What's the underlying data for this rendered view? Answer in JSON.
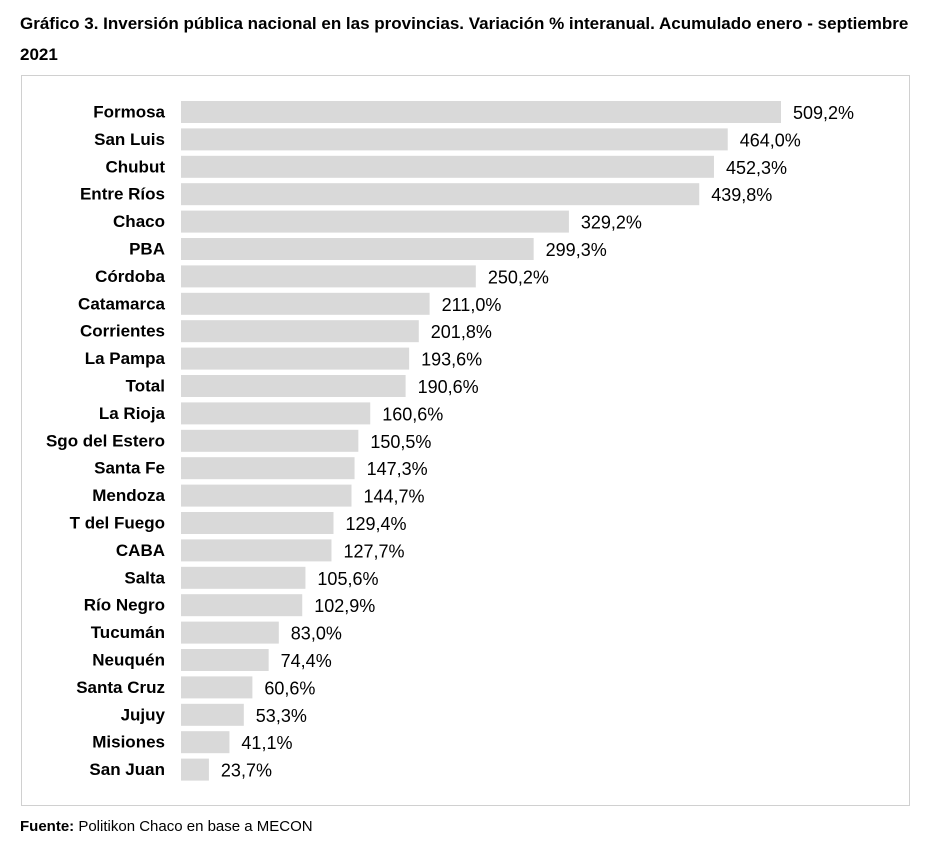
{
  "title": "Gráfico 3. Inversión pública nacional en las provincias. Variación % interanual. Acumulado enero - septiembre 2021",
  "source": {
    "label": "Fuente:",
    "text": " Politikon Chaco en base a MECON"
  },
  "chart_data": {
    "type": "bar",
    "orientation": "horizontal",
    "title": "Gráfico 3. Inversión pública nacional en las provincias. Variación % interanual. Acumulado enero - septiembre 2021",
    "xlabel": "",
    "ylabel": "",
    "xlim": [
      0,
      509.2
    ],
    "grid": false,
    "legend": "none",
    "bar_color": "#d9d9d9",
    "categories": [
      "Formosa",
      "San Luis",
      "Chubut",
      "Entre Ríos",
      "Chaco",
      "PBA",
      "Córdoba",
      "Catamarca",
      "Corrientes",
      "La Pampa",
      "Total",
      "La Rioja",
      "Sgo del Estero",
      "Santa Fe",
      "Mendoza",
      "T del Fuego",
      "CABA",
      "Salta",
      "Río Negro",
      "Tucumán",
      "Neuquén",
      "Santa Cruz",
      "Jujuy",
      "Misiones",
      "San Juan"
    ],
    "values": [
      509.2,
      464.0,
      452.3,
      439.8,
      329.2,
      299.3,
      250.2,
      211.0,
      201.8,
      193.6,
      190.6,
      160.6,
      150.5,
      147.3,
      144.7,
      129.4,
      127.7,
      105.6,
      102.9,
      83.0,
      74.4,
      60.6,
      53.3,
      41.1,
      23.7
    ],
    "value_labels": [
      "509,2%",
      "464,0%",
      "452,3%",
      "439,8%",
      "329,2%",
      "299,3%",
      "250,2%",
      "211,0%",
      "201,8%",
      "193,6%",
      "190,6%",
      "160,6%",
      "150,5%",
      "147,3%",
      "144,7%",
      "129,4%",
      "127,7%",
      "105,6%",
      "102,9%",
      "83,0%",
      "74,4%",
      "60,6%",
      "53,3%",
      "41,1%",
      "23,7%"
    ]
  }
}
